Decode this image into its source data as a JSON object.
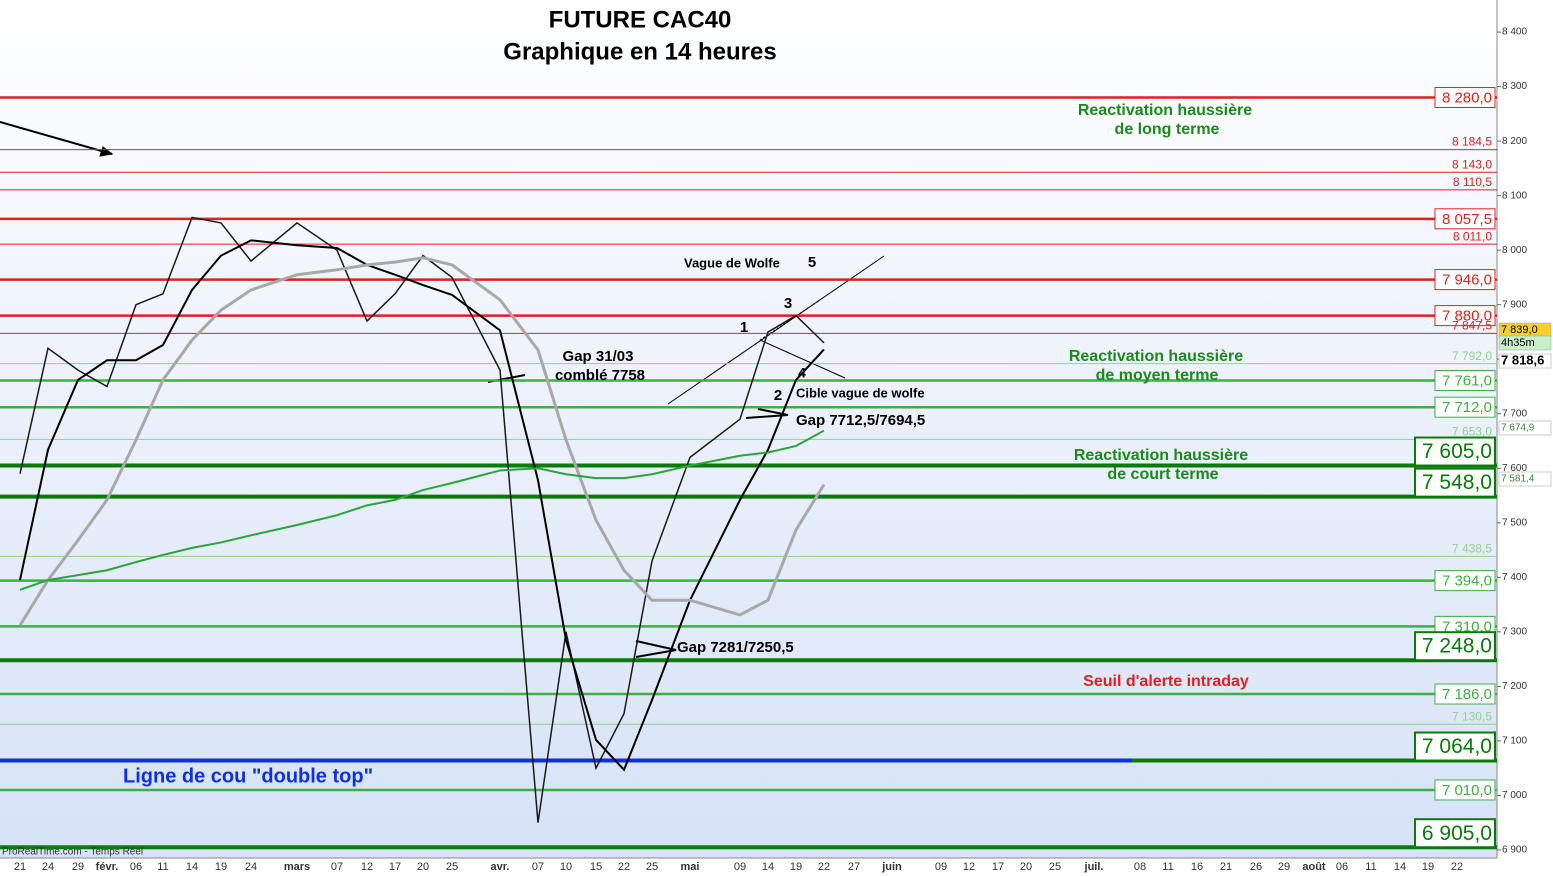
{
  "chart_data": {
    "type": "line",
    "title": "FUTURE CAC40",
    "subtitle": "Graphique en 14 heures",
    "categories": [
      "21",
      "24",
      "29",
      "févr.",
      "06",
      "11",
      "14",
      "19",
      "24",
      "mars",
      "07",
      "12",
      "17",
      "20",
      "25",
      "avr.",
      "07",
      "10",
      "15",
      "22",
      "25",
      "mai",
      "09",
      "14",
      "19",
      "22",
      "27",
      "juin",
      "09",
      "12",
      "17",
      "20",
      "25",
      "juil.",
      "08",
      "11",
      "16",
      "21",
      "26",
      "29",
      "août",
      "06",
      "11",
      "14",
      "19",
      "22"
    ],
    "series": [
      {
        "color": "#1a1a1a",
        "values": [
          7590,
          7820,
          7780,
          7750,
          7900,
          7920,
          8060,
          8050,
          7980,
          8050,
          8000,
          7870,
          7920,
          7990,
          7950,
          7780,
          6950,
          7300,
          7050,
          7150,
          7430,
          7620,
          7690,
          7850,
          7880,
          7830,
          null,
          null,
          null,
          null,
          null,
          null,
          null,
          null,
          null,
          null,
          null,
          null,
          null,
          null,
          null,
          null,
          null,
          null,
          null,
          null
        ]
      },
      {
        "color": "#000000",
        "values": [
          7395,
          7634,
          7762,
          7798,
          7798,
          7826,
          7927,
          7990,
          8018,
          8009,
          8004,
          7973,
          7955,
          7936,
          7918,
          7853,
          7578,
          7285,
          7102,
          7047,
          7175,
          7358,
          7542,
          7634,
          7762,
          7818,
          null,
          null,
          null,
          null,
          null,
          null,
          null,
          null,
          null,
          null,
          null,
          null,
          null,
          null,
          null,
          null,
          null,
          null,
          null,
          null
        ]
      },
      {
        "color": "#a8a8a8",
        "values": [
          7312,
          7395,
          7468,
          7542,
          7652,
          7762,
          7835,
          7890,
          7927,
          7955,
          7964,
          7973,
          7978,
          7986,
          7973,
          7909,
          7817,
          7652,
          7505,
          7413,
          7358,
          7358,
          7331,
          7358,
          7487,
          7570,
          null,
          null,
          null,
          null,
          null,
          null,
          null,
          null,
          null,
          null,
          null,
          null,
          null,
          null,
          null,
          null,
          null,
          null,
          null,
          null
        ]
      },
      {
        "color": "#2aa53a",
        "values": [
          7377,
          7395,
          7404,
          7413,
          7428,
          7441,
          7454,
          7464,
          7477,
          7496,
          7514,
          7532,
          7542,
          7560,
          7573,
          7596,
          7600,
          7589,
          7582,
          7582,
          7589,
          7605,
          7623,
          7629,
          7641,
          7669,
          null,
          null,
          null,
          null,
          null,
          null,
          null,
          null,
          null,
          null,
          null,
          null,
          null,
          null,
          null,
          null,
          null,
          null,
          null,
          null
        ]
      }
    ],
    "ylim": [
      6890,
      8450
    ],
    "yticks": [
      {
        "value": 6900,
        "label": "6 900"
      },
      {
        "value": 7000,
        "label": "7 000"
      },
      {
        "value": 7100,
        "label": "7 100"
      },
      {
        "value": 7200,
        "label": "7 200"
      },
      {
        "value": 7300,
        "label": "7 300"
      },
      {
        "value": 7400,
        "label": "7 400"
      },
      {
        "value": 7500,
        "label": "7 500"
      },
      {
        "value": 7600,
        "label": "7 600"
      },
      {
        "value": 7700,
        "label": "7 700"
      },
      {
        "value": 7800,
        "label": "7 800"
      },
      {
        "value": 7900,
        "label": "7 900"
      },
      {
        "value": 8000,
        "label": "8 000"
      },
      {
        "value": 8100,
        "label": "8 100"
      },
      {
        "value": 8200,
        "label": "8 200"
      },
      {
        "value": 8300,
        "label": "8 300"
      },
      {
        "value": 8400,
        "label": "8 400"
      }
    ],
    "levels": [
      {
        "value": 8280,
        "label": "8 280,0",
        "color": "#e02020",
        "style": "thick"
      },
      {
        "value": 8184.5,
        "label": "8 184,5",
        "color": "#e02020",
        "style": "thin"
      },
      {
        "value": 8143,
        "label": "8 143,0",
        "color": "#e02020",
        "style": "thin"
      },
      {
        "value": 8110.5,
        "label": "8 110,5",
        "color": "#e02020",
        "style": "thin"
      },
      {
        "value": 8057.5,
        "label": "8 057,5",
        "color": "#e02020",
        "style": "thick"
      },
      {
        "value": 8011,
        "label": "8 011,0",
        "color": "#e02020",
        "style": "thin"
      },
      {
        "value": 7946,
        "label": "7 946,0",
        "color": "#e02020",
        "style": "thick"
      },
      {
        "value": 7880,
        "label": "7 880,0",
        "color": "#e02020",
        "style": "thick"
      },
      {
        "value": 7847.5,
        "label": "7 847,5",
        "color": "#e02020",
        "style": "thin"
      },
      {
        "value": 7792,
        "label": "7 792,0",
        "color": "#8fd18f",
        "style": "thin"
      },
      {
        "value": 7761,
        "label": "7 761,0",
        "color": "#3cb043",
        "style": "thick"
      },
      {
        "value": 7712,
        "label": "7 712,0",
        "color": "#3cb043",
        "style": "thick"
      },
      {
        "value": 7653,
        "label": "7 653,0",
        "color": "#8fd18f",
        "style": "thin"
      },
      {
        "value": 7605,
        "label": "7 605,0",
        "color": "#0a7a0a",
        "style": "big"
      },
      {
        "value": 7548,
        "label": "7 548,0",
        "color": "#0a7a0a",
        "style": "big"
      },
      {
        "value": 7438.5,
        "label": "7 438,5",
        "color": "#8fd18f",
        "style": "thin"
      },
      {
        "value": 7394,
        "label": "7 394,0",
        "color": "#3cb043",
        "style": "thick"
      },
      {
        "value": 7310,
        "label": "7 310,0",
        "color": "#3cb043",
        "style": "thick"
      },
      {
        "value": 7248,
        "label": "7 248,0",
        "color": "#0a7a0a",
        "style": "big"
      },
      {
        "value": 7186,
        "label": "7 186,0",
        "color": "#3cb043",
        "style": "thick"
      },
      {
        "value": 7130.5,
        "label": "7 130,5",
        "color": "#8fd18f",
        "style": "thin"
      },
      {
        "value": 7064,
        "label": "7 064,0",
        "color": "#0a7a0a",
        "style": "big"
      },
      {
        "value": 7010,
        "label": "7 010,0",
        "color": "#3cb043",
        "style": "thick"
      },
      {
        "value": 6905,
        "label": "6 905,0",
        "color": "#0a7a0a",
        "style": "big"
      }
    ],
    "badges": [
      "7 839,0",
      "4h35m",
      "7 818,6",
      "7 674,9",
      "7 581,4"
    ],
    "annotations": [
      "Reactivation haussière",
      "de long terme",
      "Reactivation haussière",
      "de moyen terme",
      "Reactivation haussière",
      "de court terme",
      "Seuil d'alerte intraday",
      "Ligne de cou \"double top\"",
      "Gap 31/03",
      "comblé 7758",
      "Gap 7712,5/7694,5",
      "Gap 7281/7250,5",
      "Vague de Wolfe",
      "5",
      "1",
      "3",
      "4",
      "2",
      "Cible vague de wolfe",
      "ProRealTime.com - Temps Réel"
    ]
  }
}
